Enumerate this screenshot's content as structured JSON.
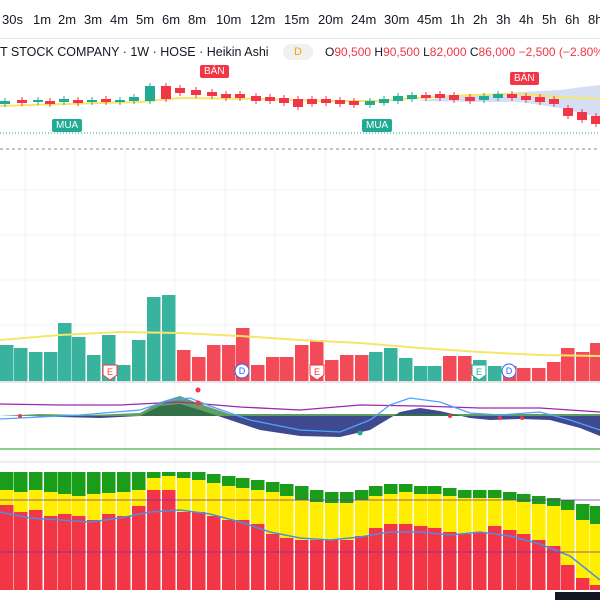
{
  "timeframes": [
    "30s",
    "1m",
    "2m",
    "3m",
    "4m",
    "5m",
    "6m",
    "8m",
    "10m",
    "12m",
    "15m",
    "20m",
    "24m",
    "30m",
    "45m",
    "1h",
    "2h",
    "3h",
    "4h",
    "5h",
    "6h",
    "8h"
  ],
  "symbol_line": "T STOCK COMPANY · 1W · HOSE · Heikin Ashi",
  "badge": "D",
  "ohlc": {
    "o_label": "O",
    "o": "90,500",
    "h_label": "H",
    "h": "90,500",
    "l_label": "L",
    "l": "82,000",
    "c_label": "C",
    "c": "86,000",
    "change": "−2,500 (−2.80%"
  },
  "signals": {
    "sell": "BÁN",
    "buy": "MUA"
  },
  "event_markers": {
    "earnings": "E",
    "dividend": "D"
  },
  "colors": {
    "up": "#22ab94",
    "down": "#f23645",
    "yellow": "#ffee00",
    "green": "#1a9e1a",
    "ma": "#f5e66a"
  }
}
